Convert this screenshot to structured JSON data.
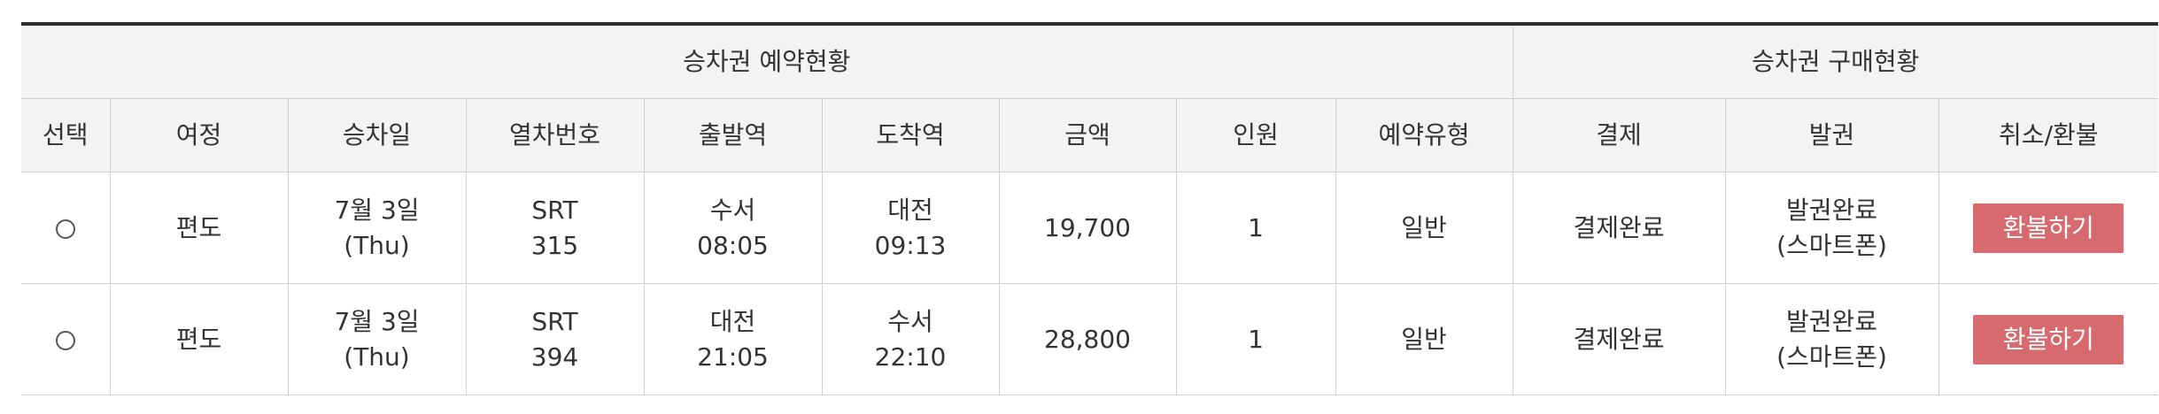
{
  "header": {
    "group_reservation": "승차권 예약현황",
    "group_purchase": "승차권 구매현황",
    "columns": {
      "select": "선택",
      "trip": "여정",
      "date": "승차일",
      "train_no": "열차번호",
      "departure": "출발역",
      "arrival": "도착역",
      "amount": "금액",
      "people": "인원",
      "reservation_type": "예약유형",
      "payment": "결제",
      "ticketing": "발권",
      "cancel_refund": "취소/환불"
    }
  },
  "rows": [
    {
      "trip": "편도",
      "date_line1": "7월 3일",
      "date_line2": "(Thu)",
      "train_line1": "SRT",
      "train_line2": "315",
      "dep_station": "수서",
      "dep_time": "08:05",
      "arr_station": "대전",
      "arr_time": "09:13",
      "amount": "19,700",
      "people": "1",
      "reservation_type": "일반",
      "payment": "결제완료",
      "ticketing_line1": "발권완료",
      "ticketing_line2": "(스마트폰)",
      "refund_label": "환불하기"
    },
    {
      "trip": "편도",
      "date_line1": "7월 3일",
      "date_line2": "(Thu)",
      "train_line1": "SRT",
      "train_line2": "394",
      "dep_station": "대전",
      "dep_time": "21:05",
      "arr_station": "수서",
      "arr_time": "22:10",
      "amount": "28,800",
      "people": "1",
      "reservation_type": "일반",
      "payment": "결제완료",
      "ticketing_line1": "발권완료",
      "ticketing_line2": "(스마트폰)",
      "refund_label": "환불하기"
    }
  ],
  "colors": {
    "refund_button": "#d66a6e",
    "header_bg": "#f3f3f3",
    "top_border": "#2d2d2d"
  }
}
